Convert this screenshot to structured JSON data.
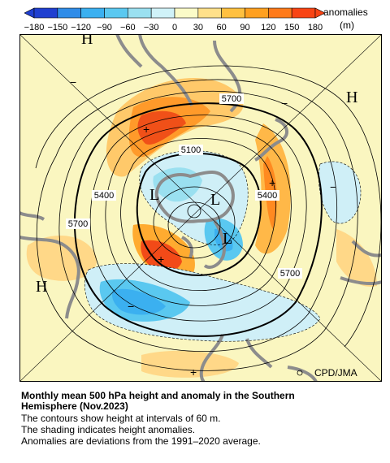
{
  "colorbar": {
    "ticks": [
      "−180",
      "−150",
      "−120",
      "−90",
      "−60",
      "−30",
      "0",
      "30",
      "60",
      "90",
      "120",
      "150",
      "180"
    ],
    "label_line1": "anomalies",
    "label_line2": "(m)",
    "colors": [
      "#1f3fd0",
      "#2f8ce8",
      "#3bb0f0",
      "#5ac8f0",
      "#9ae0f0",
      "#d0f2f8",
      "#fbfbc8",
      "#ffe08a",
      "#ffc040",
      "#ffa020",
      "#ff7a1a",
      "#f84414"
    ]
  },
  "map": {
    "contour_labels": [
      "5700",
      "5100",
      "5400",
      "5400",
      "5700",
      "5700"
    ],
    "high_low_markers": [
      "H",
      "H",
      "H",
      "L",
      "L",
      "L"
    ],
    "plus_minus_markers": [
      "+",
      "+",
      "+",
      "+",
      "−",
      "−",
      "−",
      "−"
    ],
    "credit": "CPD/JMA",
    "background_color": "#faf6c0",
    "land_color": "#8c8c8c"
  },
  "caption": {
    "title_line1": "Monthly mean 500 hPa height and anomaly in the Southern",
    "title_line2": "Hemisphere (Nov.2023)",
    "line1": "The contours show height at intervals of 60 m.",
    "line2": "The shading indicates height anomalies.",
    "line3": "Anomalies are deviations from the 1991–2020 average."
  }
}
